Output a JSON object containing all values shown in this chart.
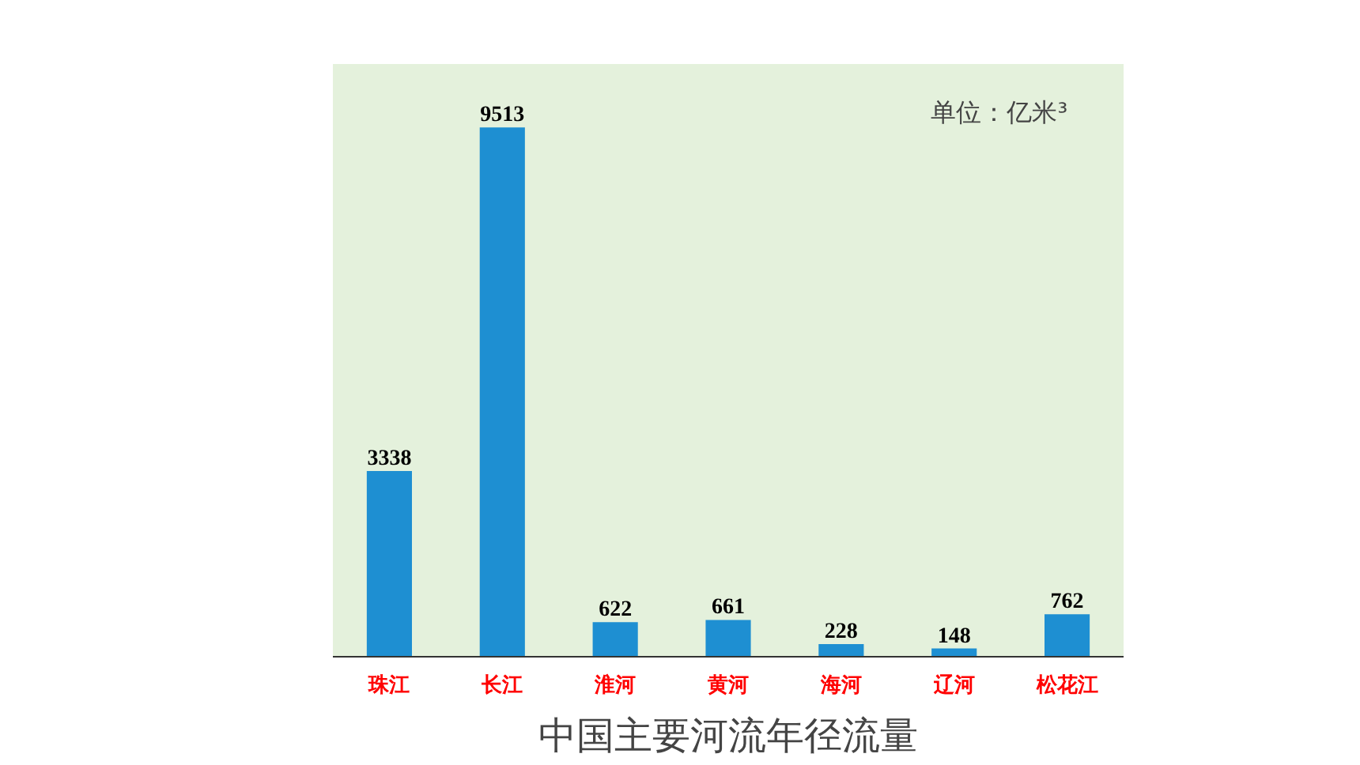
{
  "chart_data": {
    "type": "bar",
    "title": "中国主要河流年径流量",
    "categories": [
      "珠江",
      "长江",
      "淮河",
      "黄河",
      "海河",
      "辽河",
      "松花江"
    ],
    "values": [
      3338,
      9513,
      622,
      661,
      228,
      148,
      762
    ],
    "color": "#1e8fd2",
    "data_labels": true,
    "grid": false,
    "annotations": [
      "单位：亿米³"
    ]
  }
}
